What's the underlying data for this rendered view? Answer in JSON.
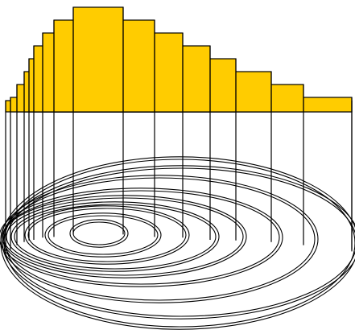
{
  "diagram": {
    "type": "nested-loops",
    "layer_count": 9,
    "colors": {
      "bar_fill": "#ffcc00",
      "stroke": "#000000",
      "background": "#ffffff"
    }
  }
}
